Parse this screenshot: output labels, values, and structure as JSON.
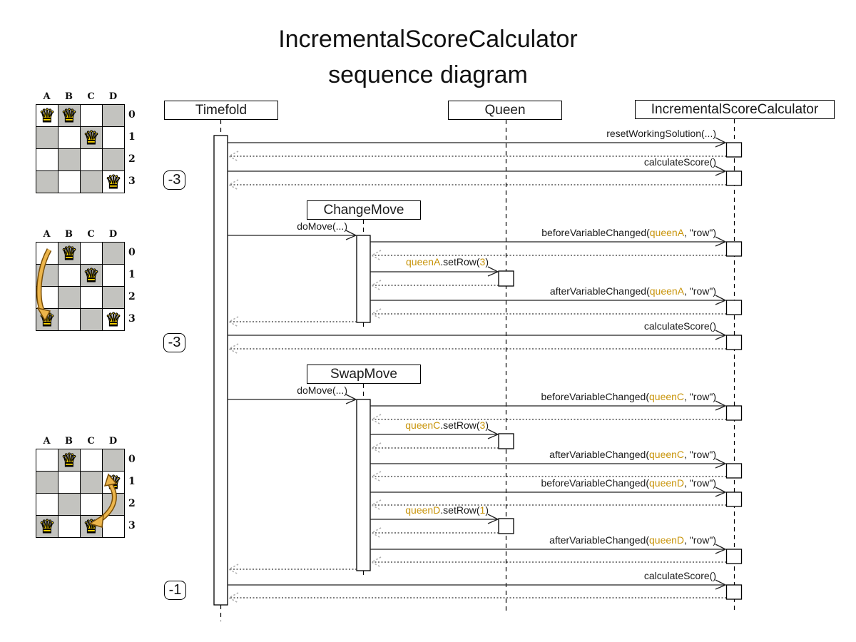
{
  "title": {
    "line1": "IncrementalScoreCalculator",
    "line2": "sequence diagram"
  },
  "lifelines": {
    "timefold": "Timefold",
    "queen": "Queen",
    "calculator": "IncrementalScoreCalculator",
    "change_move": "ChangeMove",
    "swap_move": "SwapMove"
  },
  "scores": {
    "initial": "-3",
    "after_change_move": "-3",
    "after_swap_move": "-1"
  },
  "colors": {
    "highlight_gold": "#c8940a",
    "board_gray": "#c3c3bf",
    "queen_gold": "#ffd700",
    "move_arrow_orange": "#e2a33c"
  },
  "messages": {
    "reset_working_solution": "resetWorkingSolution(...)",
    "calculate_score": "calculateScore()",
    "do_move": "doMove(...)",
    "before_queen_a": {
      "pre": "beforeVariableChanged(",
      "arg": "queenA",
      "post": ", \"row\")"
    },
    "set_row_a": {
      "obj": "queenA",
      "mid": ".setRow(",
      "val": "3",
      "post": ")"
    },
    "after_queen_a": {
      "pre": "afterVariableChanged(",
      "arg": "queenA",
      "post": ", \"row\")"
    },
    "before_queen_c": {
      "pre": "beforeVariableChanged(",
      "arg": "queenC",
      "post": ", \"row\")"
    },
    "set_row_c": {
      "obj": "queenC",
      "mid": ".setRow(",
      "val": "3",
      "post": ")"
    },
    "after_queen_c": {
      "pre": "afterVariableChanged(",
      "arg": "queenC",
      "post": ", \"row\")"
    },
    "before_queen_d": {
      "pre": "beforeVariableChanged(",
      "arg": "queenD",
      "post": ", \"row\")"
    },
    "set_row_d": {
      "obj": "queenD",
      "mid": ".setRow(",
      "val": "1",
      "post": ")"
    },
    "after_queen_d": {
      "pre": "afterVariableChanged(",
      "arg": "queenD",
      "post": ", \"row\")"
    }
  },
  "boards": {
    "column_labels": [
      "A",
      "B",
      "C",
      "D"
    ],
    "row_labels": [
      "0",
      "1",
      "2",
      "3"
    ],
    "queen_glyph": "♛",
    "board1": {
      "queens": [
        "A0",
        "B0",
        "C1",
        "D3"
      ]
    },
    "board2": {
      "queens": [
        "B0",
        "C1",
        "A3",
        "D3"
      ]
    },
    "board3": {
      "queens": [
        "B0",
        "D1",
        "A3",
        "C3"
      ]
    }
  }
}
